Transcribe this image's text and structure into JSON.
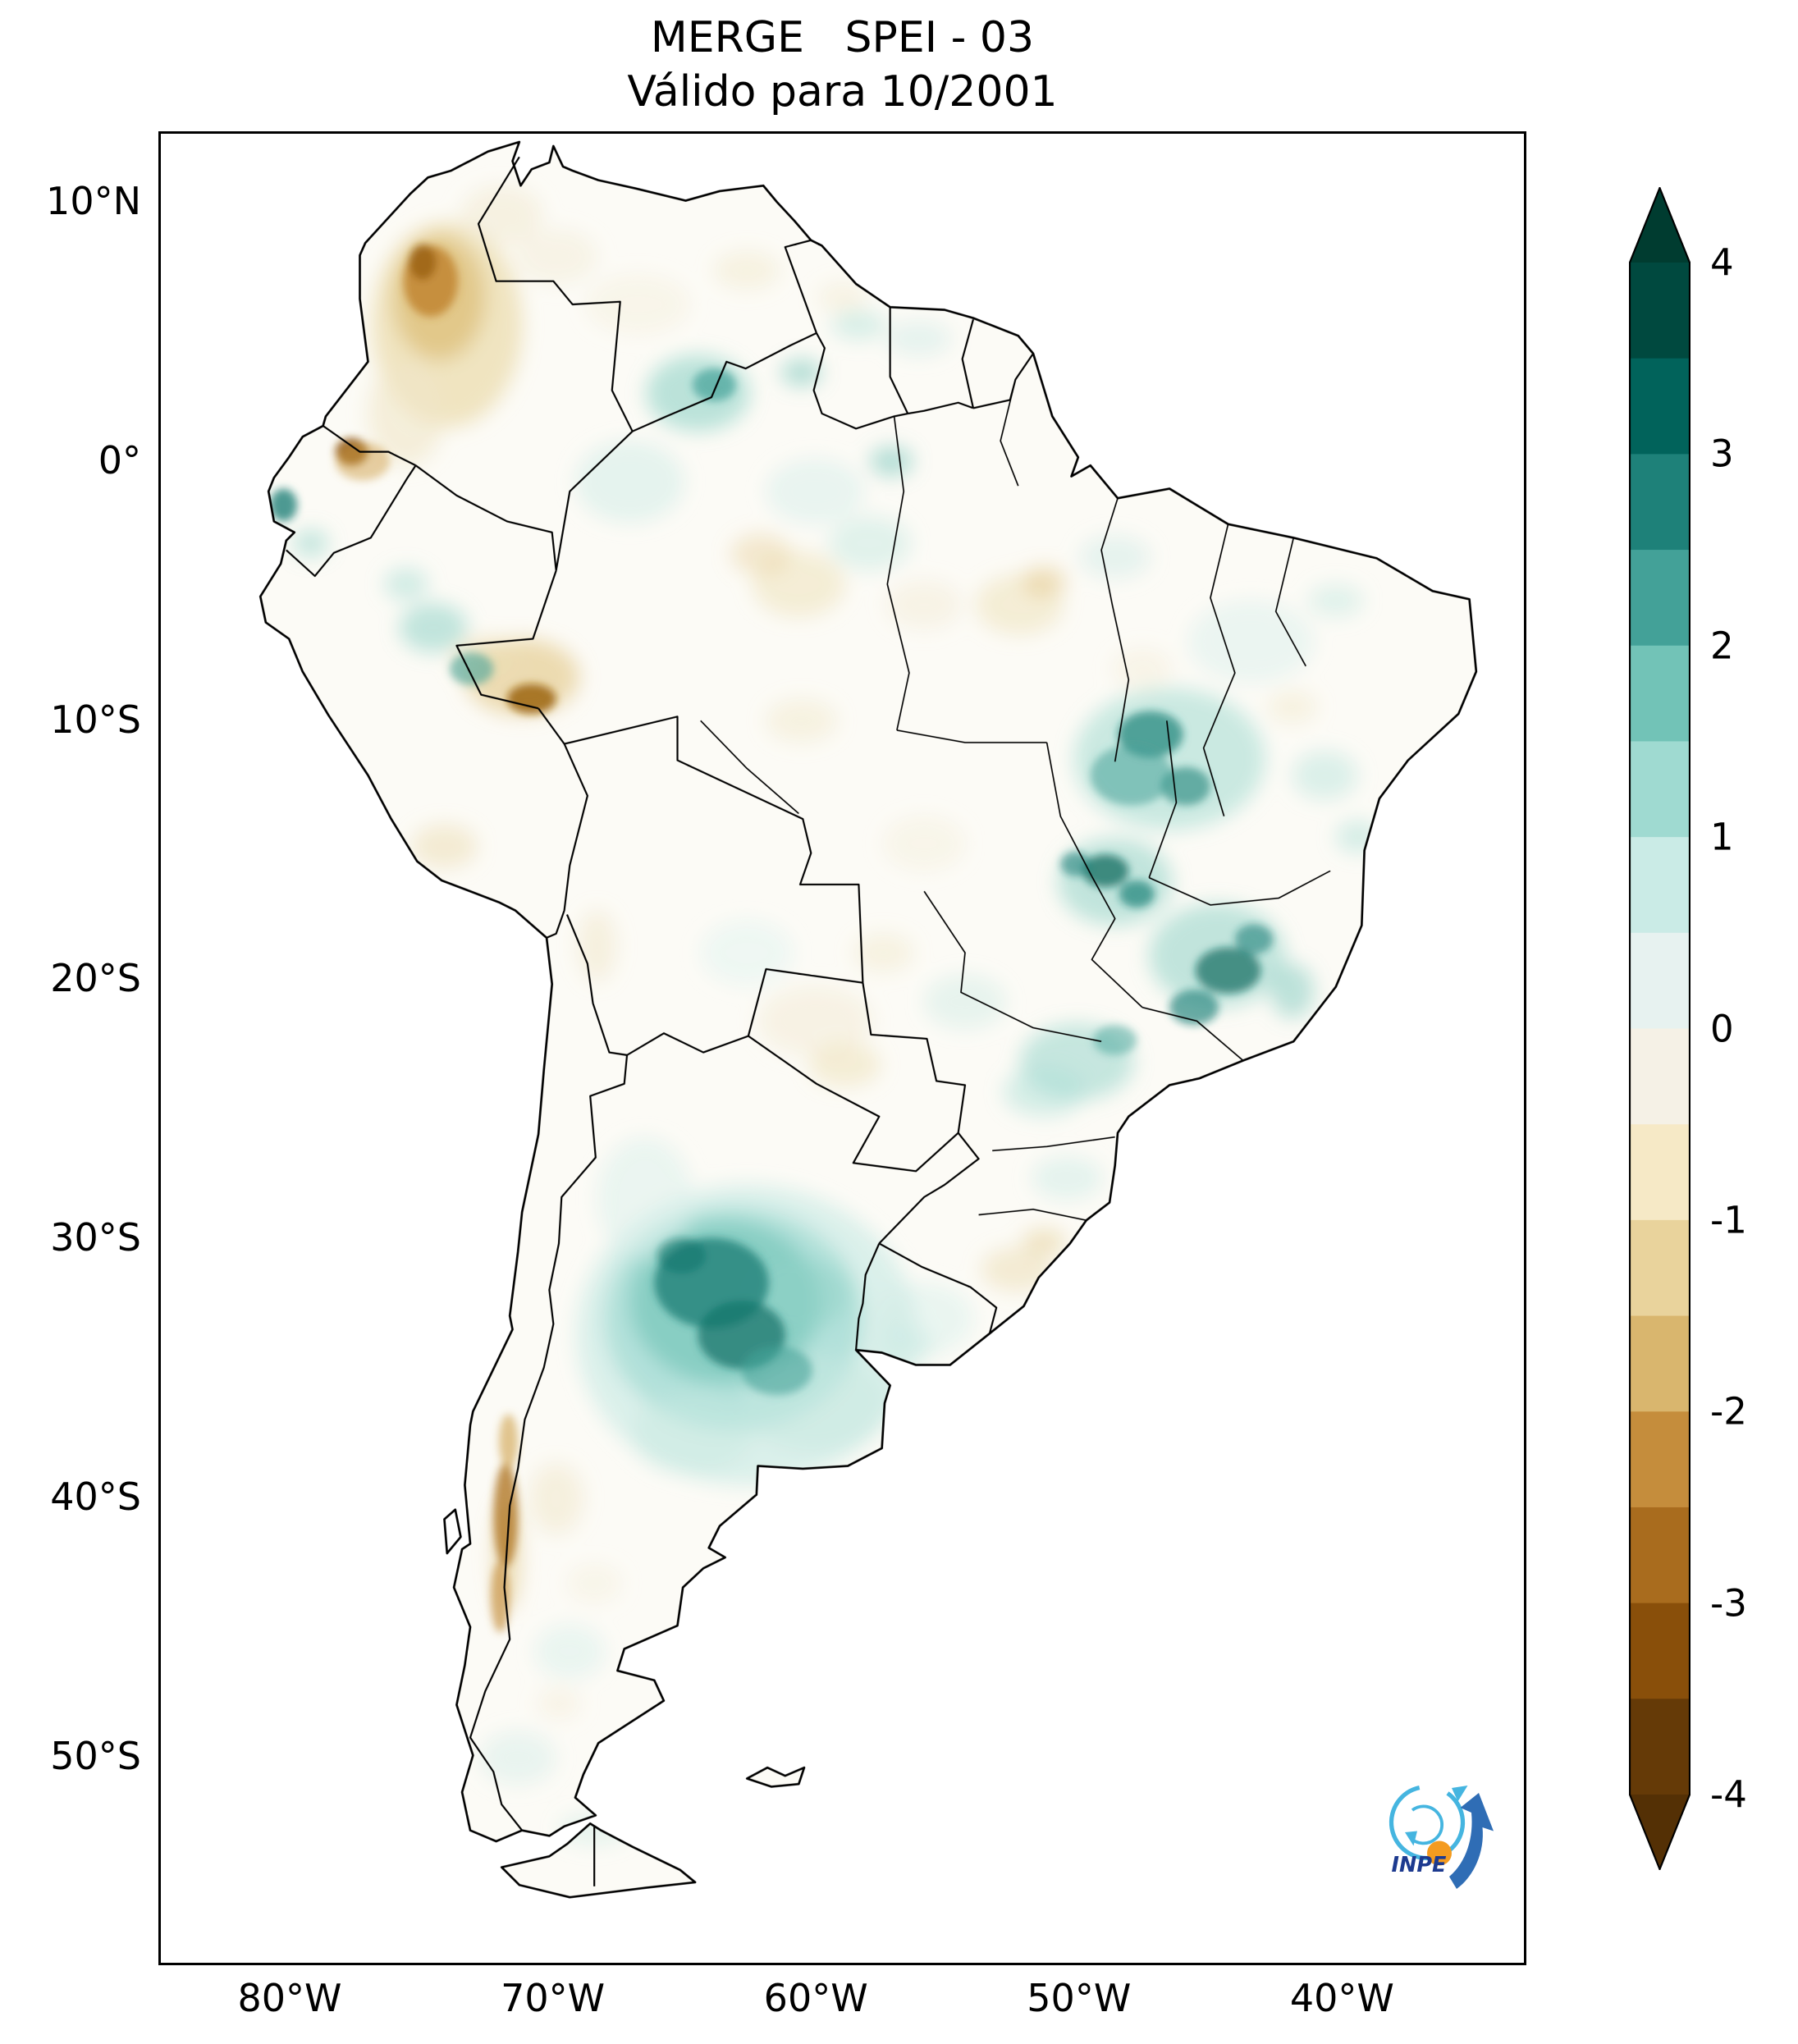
{
  "figure": {
    "title": "MERGE   SPEI - 03",
    "subtitle": "Válido para 10/2001"
  },
  "axes": {
    "y_ticks": [
      "10°N",
      "0°",
      "10°S",
      "20°S",
      "30°S",
      "40°S",
      "50°S"
    ],
    "x_ticks": [
      "80°W",
      "70°W",
      "60°W",
      "50°W",
      "40°W"
    ]
  },
  "colorbar": {
    "tick_labels": [
      "4",
      "3",
      "2",
      "1",
      "0",
      "-1",
      "-2",
      "-3",
      "-4"
    ],
    "tick_values": [
      4,
      3,
      2,
      1,
      0,
      -1,
      -2,
      -3,
      -4
    ],
    "extend": "both",
    "colors_top_to_bottom": [
      "#00493f",
      "#01635b",
      "#1e8179",
      "#43a198",
      "#72c3b7",
      "#9fdad1",
      "#caebe6",
      "#e7f2f0",
      "#f5f1e6",
      "#f6e9c6",
      "#e9d39c",
      "#d9b66e",
      "#c58d3c",
      "#a96c1e",
      "#894f0a",
      "#653a07"
    ],
    "extend_colors": {
      "over": "#003c30",
      "under": "#543005"
    }
  },
  "logo": {
    "label": "INPE"
  },
  "chart_data": {
    "type": "heatmap",
    "title": "MERGE   SPEI - 03",
    "subtitle": "Válido para 10/2001",
    "product": "MERGE",
    "variable": "SPEI-03",
    "valid_for": "10/2001",
    "colormap": "BrBG",
    "vmin": -4,
    "vmax": 4,
    "colorbar_position": "right",
    "map_extent": {
      "lon_west": -85,
      "lon_east": -33,
      "lat_north": 12.7,
      "lat_south": -58
    },
    "regions": [
      {
        "area": "central Colombia (Andes/Llanos)",
        "approx_spei": -2.5
      },
      {
        "area": "Ecuador-Colombia border",
        "approx_spei": -3.0
      },
      {
        "area": "Acre / Peru-Brazil border",
        "approx_spei": -2.5
      },
      {
        "area": "Chilean Andes near 40°S-43°S",
        "approx_spei": -2.0
      },
      {
        "area": "southern Venezuela (Amazonas)",
        "approx_spei": 1.5
      },
      {
        "area": "northern Peru interior",
        "approx_spei": 1.5
      },
      {
        "area": "western Bahia / Tocantins (Brazil)",
        "approx_spei": 2.5
      },
      {
        "area": "Minas Gerais / Goiás (Brazil)",
        "approx_spei": 2.5
      },
      {
        "area": "central Argentina (Pampas / Córdoba)",
        "approx_spei": 3.0
      },
      {
        "area": "Uruguay and southern Brazil interior",
        "approx_spei": 0.8
      },
      {
        "area": "most of Amazon basin and Patagonia",
        "approx_spei": 0.0
      },
      {
        "area": "Paraguay / Rio Grande do Sul coast",
        "approx_spei": -0.8
      }
    ]
  }
}
